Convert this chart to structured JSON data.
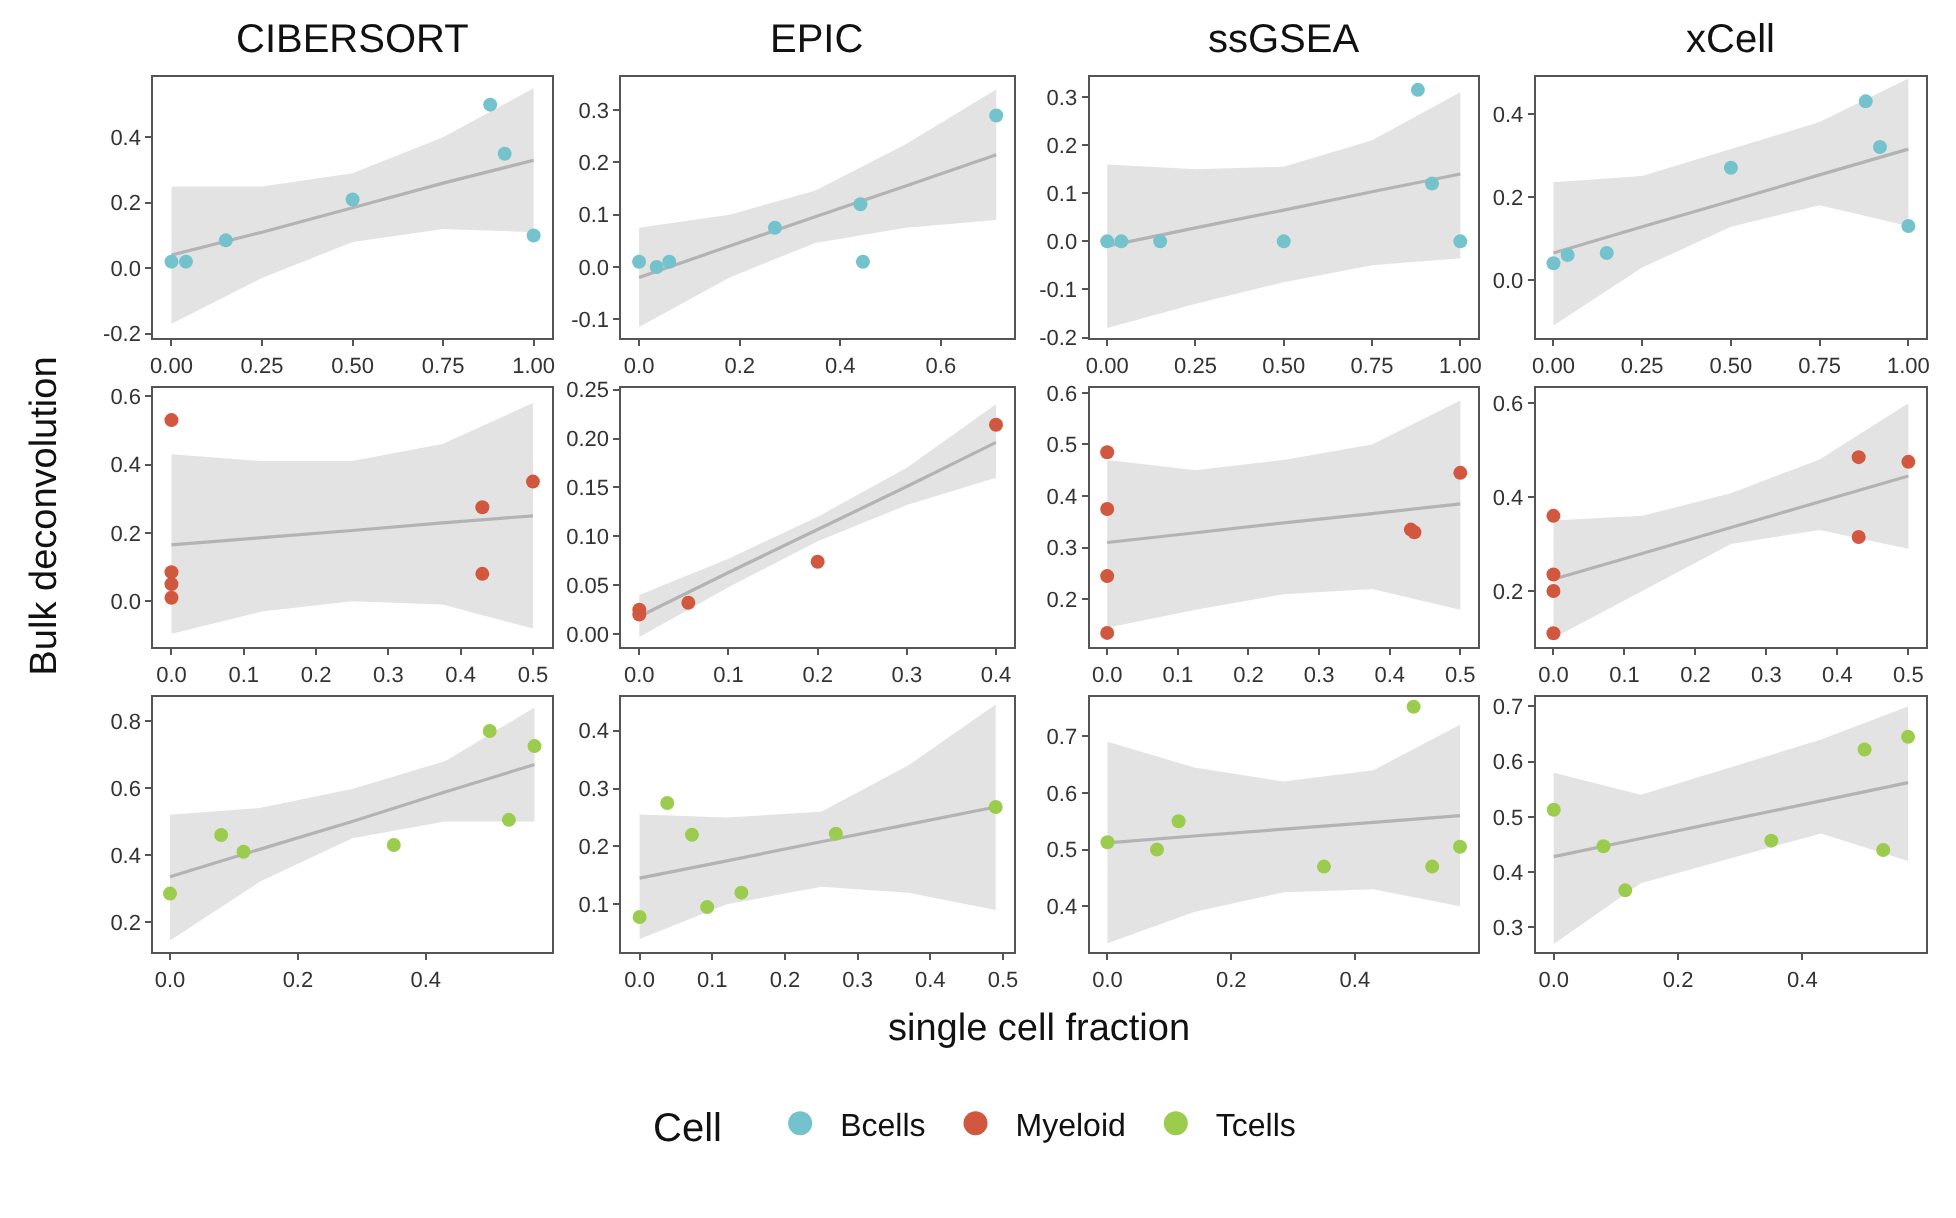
{
  "chart_data": [
    {
      "type": "scatter",
      "title": "CIBERSORT",
      "legend": "bottom",
      "legend_title": "Cell",
      "xlim": [
        -0.05,
        1.05
      ],
      "ylim": [
        -0.215,
        0.585
      ],
      "xticks": [
        {
          "value": 0,
          "label": "0.00"
        },
        0.25,
        {
          "value": 0.5,
          "label": "0.50"
        },
        0.75,
        {
          "value": 1,
          "label": "1.00"
        }
      ],
      "yticks": [
        -0.2,
        {
          "value": 0,
          "label": "0.0"
        },
        0.2,
        0.4
      ],
      "series": [
        {
          "type": "line",
          "color": "#b3b3b3",
          "x": [
            0,
            0.25,
            0.5,
            0.75,
            1
          ],
          "values": [
            0.04,
            0.11,
            0.185,
            0.26,
            0.33
          ],
          "lower": [
            -0.17,
            -0.03,
            0.08,
            0.12,
            0.11
          ],
          "upper": [
            0.25,
            0.25,
            0.29,
            0.4,
            0.55
          ]
        },
        {
          "type": "scatter",
          "name": "Bcells",
          "marker": "circle",
          "color": "#74c3cc",
          "x": [
            0,
            0.04,
            0.15,
            0.5,
            0.88,
            0.92,
            1
          ],
          "values": [
            0.02,
            0.02,
            0.085,
            0.21,
            0.5,
            0.35,
            0.1
          ]
        }
      ]
    },
    {
      "type": "scatter",
      "title": "EPIC",
      "xlim": [
        -0.035,
        0.745
      ],
      "ylim": [
        -0.137,
        0.364
      ],
      "xticks": [
        {
          "value": 0,
          "label": "0.0"
        },
        0.2,
        0.4,
        0.6
      ],
      "yticks": [
        -0.1,
        {
          "value": 0,
          "label": "0.0"
        },
        0.1,
        0.2,
        0.3
      ],
      "series": [
        {
          "type": "line",
          "color": "#b3b3b3",
          "x": [
            0,
            0.18,
            0.35,
            0.53,
            0.71
          ],
          "values": [
            -0.02,
            0.04,
            0.096,
            0.155,
            0.215
          ],
          "lower": [
            -0.115,
            -0.02,
            0.046,
            0.075,
            0.09
          ],
          "upper": [
            0.075,
            0.1,
            0.146,
            0.235,
            0.34
          ]
        },
        {
          "type": "scatter",
          "marker": "circle",
          "color": "#74c3cc",
          "x": [
            0,
            0.035,
            0.06,
            0.27,
            0.44,
            0.445,
            0.71
          ],
          "values": [
            0.01,
            0,
            0.01,
            0.075,
            0.12,
            0.01,
            0.29
          ]
        }
      ]
    },
    {
      "type": "scatter",
      "title": "ssGSEA",
      "xlim": [
        -0.05,
        1.05
      ],
      "ylim": [
        -0.202,
        0.342
      ],
      "xticks": [
        {
          "value": 0,
          "label": "0.00"
        },
        0.25,
        {
          "value": 0.5,
          "label": "0.50"
        },
        0.75,
        {
          "value": 1,
          "label": "1.00"
        }
      ],
      "yticks": [
        -0.2,
        -0.1,
        {
          "value": 0,
          "label": "0.0"
        },
        0.1,
        0.2,
        0.3
      ],
      "series": [
        {
          "type": "line",
          "color": "#b3b3b3",
          "x": [
            0,
            0.25,
            0.5,
            0.75,
            1
          ],
          "values": [
            -0.01,
            0.028,
            0.065,
            0.103,
            0.14
          ],
          "lower": [
            -0.18,
            -0.13,
            -0.085,
            -0.05,
            -0.035
          ],
          "upper": [
            0.16,
            0.15,
            0.155,
            0.21,
            0.31
          ]
        },
        {
          "type": "scatter",
          "marker": "circle",
          "color": "#74c3cc",
          "x": [
            0,
            0.04,
            0.15,
            0.5,
            0.88,
            0.92,
            1
          ],
          "values": [
            0,
            0,
            0,
            0,
            0.315,
            0.12,
            0
          ]
        }
      ]
    },
    {
      "type": "scatter",
      "title": "xCell",
      "xlim": [
        -0.05,
        1.05
      ],
      "ylim": [
        -0.141,
        0.489
      ],
      "xticks": [
        {
          "value": 0,
          "label": "0.00"
        },
        0.25,
        {
          "value": 0.5,
          "label": "0.50"
        },
        0.75,
        {
          "value": 1,
          "label": "1.00"
        }
      ],
      "yticks": [
        {
          "value": 0,
          "label": "0.0"
        },
        0.2,
        0.4
      ],
      "series": [
        {
          "type": "line",
          "color": "#b3b3b3",
          "x": [
            0,
            0.25,
            0.5,
            0.75,
            1
          ],
          "values": [
            0.065,
            0.128,
            0.19,
            0.253,
            0.315
          ],
          "lower": [
            -0.11,
            0.03,
            0.128,
            0.18,
            0.13
          ],
          "upper": [
            0.235,
            0.25,
            0.315,
            0.38,
            0.485
          ]
        },
        {
          "type": "scatter",
          "marker": "circle",
          "color": "#74c3cc",
          "x": [
            0,
            0.04,
            0.15,
            0.5,
            0.88,
            0.92,
            1
          ],
          "values": [
            0.04,
            0.06,
            0.065,
            0.27,
            0.43,
            0.32,
            0.13
          ]
        }
      ]
    },
    {
      "type": "scatter",
      "ylabel": "Bulk deconvolution",
      "xlim": [
        -0.025,
        0.526
      ],
      "ylim": [
        -0.135,
        0.625
      ],
      "xticks": [
        {
          "value": 0,
          "label": "0.0"
        },
        0.1,
        0.2,
        0.3,
        0.4,
        0.5
      ],
      "yticks": [
        {
          "value": 0,
          "label": "0.0"
        },
        0.2,
        0.4,
        0.6
      ],
      "series": [
        {
          "type": "line",
          "color": "#b3b3b3",
          "x": [
            0,
            0.125,
            0.25,
            0.375,
            0.5
          ],
          "values": [
            0.165,
            0.186,
            0.207,
            0.229,
            0.25
          ],
          "lower": [
            -0.095,
            -0.03,
            0.0,
            -0.01,
            -0.08
          ],
          "upper": [
            0.43,
            0.41,
            0.41,
            0.46,
            0.58
          ]
        },
        {
          "type": "scatter",
          "name": "Myeloid",
          "marker": "circle",
          "color": "#d2573f",
          "x": [
            0,
            0,
            0,
            0,
            0.43,
            0.43,
            0.5
          ],
          "values": [
            0.53,
            0.085,
            0.05,
            0.01,
            0.275,
            0.08,
            0.35
          ]
        }
      ]
    },
    {
      "type": "scatter",
      "xlim": [
        -0.02,
        0.42
      ],
      "ylim": [
        -0.0135,
        0.252
      ],
      "xticks": [
        {
          "value": 0,
          "label": "0.0"
        },
        0.1,
        0.2,
        0.3,
        0.4
      ],
      "yticks": [
        {
          "value": 0,
          "label": "0.00"
        },
        0.05,
        {
          "value": 0.1,
          "label": "0.10"
        },
        0.15,
        {
          "value": 0.2,
          "label": "0.20"
        },
        0.25
      ],
      "series": [
        {
          "type": "line",
          "color": "#b3b3b3",
          "x": [
            0,
            0.1,
            0.2,
            0.3,
            0.4
          ],
          "values": [
            0.018,
            0.063,
            0.107,
            0.151,
            0.196
          ],
          "lower": [
            -0.003,
            0.048,
            0.095,
            0.132,
            0.16
          ],
          "upper": [
            0.04,
            0.077,
            0.12,
            0.17,
            0.235
          ]
        },
        {
          "type": "scatter",
          "marker": "circle",
          "color": "#d2573f",
          "x": [
            0,
            0,
            0.055,
            0.2,
            0.4
          ],
          "values": [
            0.025,
            0.02,
            0.032,
            0.074,
            0.214
          ]
        }
      ]
    },
    {
      "type": "scatter",
      "xlim": [
        -0.025,
        0.525
      ],
      "ylim": [
        0.107,
        0.61
      ],
      "xticks": [
        {
          "value": 0,
          "label": "0.0"
        },
        0.1,
        0.2,
        0.3,
        0.4,
        0.5
      ],
      "yticks": [
        0.2,
        0.3,
        0.4,
        0.5,
        0.6
      ],
      "series": [
        {
          "type": "line",
          "color": "#b3b3b3",
          "x": [
            0,
            0.125,
            0.25,
            0.375,
            0.5
          ],
          "values": [
            0.31,
            0.329,
            0.348,
            0.366,
            0.385
          ],
          "lower": [
            0.145,
            0.18,
            0.21,
            0.22,
            0.18
          ],
          "upper": [
            0.47,
            0.45,
            0.47,
            0.5,
            0.585
          ]
        },
        {
          "type": "scatter",
          "marker": "circle",
          "color": "#d2573f",
          "x": [
            0,
            0,
            0,
            0,
            0.43,
            0.435,
            0.5
          ],
          "values": [
            0.485,
            0.375,
            0.245,
            0.135,
            0.335,
            0.33,
            0.445
          ]
        }
      ]
    },
    {
      "type": "scatter",
      "xlim": [
        -0.025,
        0.525
      ],
      "ylim": [
        0.08,
        0.633
      ],
      "xticks": [
        {
          "value": 0,
          "label": "0.0"
        },
        0.1,
        0.2,
        0.3,
        0.4,
        0.5
      ],
      "yticks": [
        0.2,
        0.4,
        0.6
      ],
      "series": [
        {
          "type": "line",
          "color": "#b3b3b3",
          "x": [
            0,
            0.125,
            0.25,
            0.375,
            0.5
          ],
          "values": [
            0.225,
            0.28,
            0.335,
            0.39,
            0.445
          ],
          "lower": [
            0.1,
            0.2,
            0.3,
            0.33,
            0.29
          ],
          "upper": [
            0.35,
            0.36,
            0.408,
            0.48,
            0.6
          ]
        },
        {
          "type": "scatter",
          "marker": "circle",
          "color": "#d2573f",
          "x": [
            0,
            0,
            0,
            0,
            0.43,
            0.43,
            0.5
          ],
          "values": [
            0.36,
            0.235,
            0.2,
            0.11,
            0.485,
            0.315,
            0.475
          ]
        }
      ]
    },
    {
      "type": "scatter",
      "xlim": [
        -0.026,
        0.597
      ],
      "ylim": [
        0.11,
        0.873
      ],
      "xticks": [
        {
          "value": 0,
          "label": "0.0"
        },
        0.2,
        0.4
      ],
      "yticks": [
        0.2,
        0.4,
        0.6,
        0.8
      ],
      "series": [
        {
          "type": "line",
          "color": "#b3b3b3",
          "x": [
            0,
            0.14,
            0.285,
            0.43,
            0.57
          ],
          "values": [
            0.335,
            0.417,
            0.5,
            0.588,
            0.67
          ],
          "lower": [
            0.145,
            0.32,
            0.45,
            0.5,
            0.5
          ],
          "upper": [
            0.52,
            0.54,
            0.597,
            0.68,
            0.84
          ]
        },
        {
          "type": "scatter",
          "name": "Tcells",
          "marker": "circle",
          "color": "#9ccc4e",
          "x": [
            0,
            0.08,
            0.115,
            0.35,
            0.5,
            0.53,
            0.57
          ],
          "values": [
            0.285,
            0.46,
            0.41,
            0.43,
            0.77,
            0.505,
            0.725
          ]
        }
      ]
    },
    {
      "type": "scatter",
      "xlabel": "single cell fraction",
      "xlim": [
        -0.025,
        0.515
      ],
      "ylim": [
        0.017,
        0.459
      ],
      "xticks": [
        {
          "value": 0,
          "label": "0.0"
        },
        0.1,
        0.2,
        0.3,
        0.4,
        0.5
      ],
      "yticks": [
        0.1,
        0.2,
        0.3,
        0.4
      ],
      "series": [
        {
          "type": "line",
          "color": "#b3b3b3",
          "x": [
            0,
            0.12,
            0.25,
            0.37,
            0.49
          ],
          "values": [
            0.145,
            0.175,
            0.208,
            0.238,
            0.268
          ],
          "lower": [
            0.04,
            0.1,
            0.13,
            0.12,
            0.09
          ],
          "upper": [
            0.255,
            0.25,
            0.26,
            0.34,
            0.445
          ]
        },
        {
          "type": "scatter",
          "marker": "circle",
          "color": "#9ccc4e",
          "x": [
            0,
            0.038,
            0.072,
            0.093,
            0.14,
            0.27,
            0.49
          ],
          "values": [
            0.078,
            0.275,
            0.22,
            0.095,
            0.12,
            0.222,
            0.268
          ]
        }
      ]
    },
    {
      "type": "scatter",
      "xlim": [
        -0.029,
        0.599
      ],
      "ylim": [
        0.319,
        0.77
      ],
      "xticks": [
        {
          "value": 0,
          "label": "0.0"
        },
        0.2,
        0.4
      ],
      "yticks": [
        0.4,
        0.5,
        0.6,
        0.7
      ],
      "series": [
        {
          "type": "line",
          "color": "#b3b3b3",
          "x": [
            0,
            0.14,
            0.285,
            0.43,
            0.57
          ],
          "values": [
            0.512,
            0.524,
            0.536,
            0.548,
            0.56
          ],
          "lower": [
            0.335,
            0.39,
            0.425,
            0.43,
            0.4
          ],
          "upper": [
            0.69,
            0.645,
            0.62,
            0.64,
            0.72
          ]
        },
        {
          "type": "scatter",
          "marker": "circle",
          "color": "#9ccc4e",
          "x": [
            0,
            0.08,
            0.115,
            0.35,
            0.495,
            0.525,
            0.57
          ],
          "values": [
            0.513,
            0.5,
            0.55,
            0.47,
            0.752,
            0.47,
            0.505
          ]
        }
      ]
    },
    {
      "type": "scatter",
      "xlim": [
        -0.029,
        0.599
      ],
      "ylim": [
        0.255,
        0.718
      ],
      "xticks": [
        {
          "value": 0,
          "label": "0.0"
        },
        0.2,
        0.4
      ],
      "yticks": [
        0.3,
        0.4,
        0.5,
        0.6,
        0.7
      ],
      "series": [
        {
          "type": "line",
          "color": "#b3b3b3",
          "x": [
            0,
            0.14,
            0.285,
            0.43,
            0.57
          ],
          "values": [
            0.428,
            0.461,
            0.495,
            0.529,
            0.562
          ],
          "lower": [
            0.27,
            0.38,
            0.425,
            0.47,
            0.42
          ],
          "upper": [
            0.58,
            0.54,
            0.59,
            0.64,
            0.7
          ]
        },
        {
          "type": "scatter",
          "marker": "circle",
          "color": "#9ccc4e",
          "x": [
            0,
            0.08,
            0.115,
            0.35,
            0.5,
            0.53,
            0.57
          ],
          "values": [
            0.513,
            0.447,
            0.367,
            0.457,
            0.622,
            0.44,
            0.645
          ]
        }
      ]
    }
  ]
}
